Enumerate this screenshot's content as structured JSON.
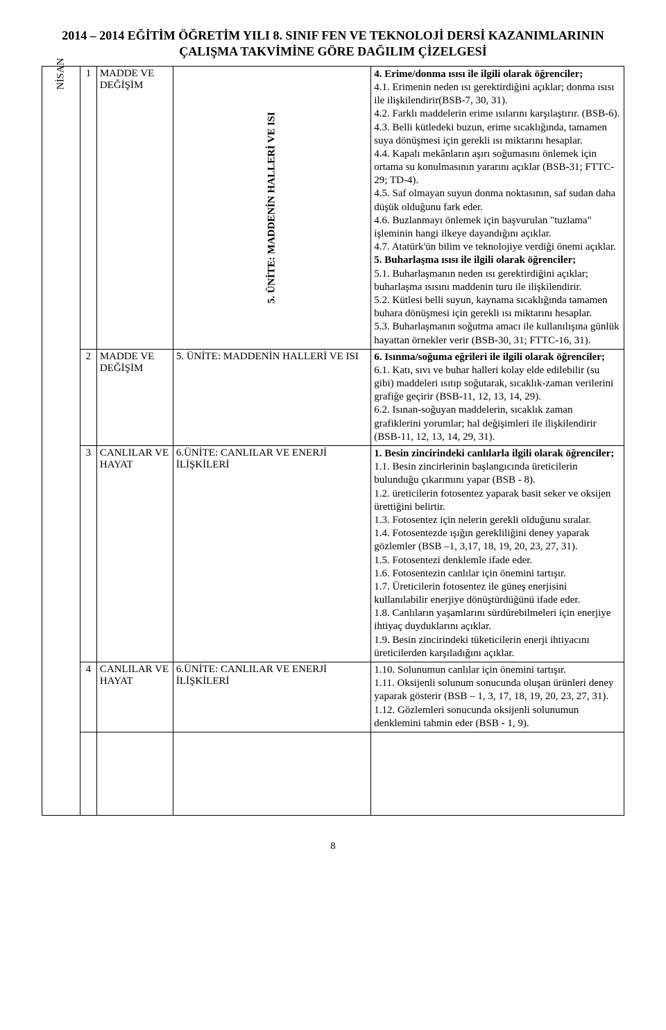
{
  "header": {
    "title_line1": "2014 – 2014 EĞİTİM ÖĞRETİM YILI 8. SINIF FEN VE TEKNOLOJİ DERSİ KAZANIMLARININ",
    "title_line2": "ÇALIŞMA TAKVİMİNE GÖRE DAĞILIM ÇİZELGESİ"
  },
  "page_number": "8",
  "month": "NİSAN",
  "rows": [
    {
      "week": "1",
      "subject": "MADDE VE DEĞİŞİM",
      "unit": "5. ÜNİTE: MADDENİN HALLERİ VE ISI",
      "unit_vertical": true,
      "content": [
        {
          "b": true,
          "t": "4. Erime/donma ısısı ile ilgili olarak öğrenciler;"
        },
        {
          "b": false,
          "t": "4.1. Erimenin neden ısı gerektirdiğini açıklar; donma ısısı ile ilişkilendirir(BSB-7, 30, 31)."
        },
        {
          "b": false,
          "t": "4.2. Farklı maddelerin erime ısılarını karşılaştırır. (BSB-6)."
        },
        {
          "b": false,
          "t": "4.3. Belli kütledeki buzun, erime sıcaklığında, tamamen suya dönüşmesi için gerekli ısı miktarını hesaplar."
        },
        {
          "b": false,
          "t": "4.4. Kapalı mekânların aşırı soğumasını önlemek için ortama su konulmasının yararını açıklar (BSB-31; FTTC-29; TD-4)."
        },
        {
          "b": false,
          "t": "4.5. Saf olmayan suyun donma noktasının, saf sudan daha düşük olduğunu fark eder."
        },
        {
          "b": false,
          "t": "4.6. Buzlanmayı önlemek için başvurulan \"tuzlama\" işleminin hangi ilkeye dayandığını açıklar."
        },
        {
          "b": false,
          "t": "4.7. Atatürk'ün bilim ve teknolojiye verdiği önemi açıklar."
        },
        {
          "b": true,
          "t": "5. Buharlaşma ısısı ile ilgili olarak öğrenciler;"
        },
        {
          "b": false,
          "t": "5.1. Buharlaşmanın neden ısı gerektirdiğini açıklar; buharlaşma ısısını maddenin turu ile ilişkilendirir."
        },
        {
          "b": false,
          "t": "5.2. Kütlesi belli suyun, kaynama sıcaklığında tamamen buhara dönüşmesi için gerekli ısı miktarını hesaplar."
        },
        {
          "b": false,
          "t": "5.3. Buharlaşmanın soğutma amacı ile kullanılışına günlük hayattan örnekler verir (BSB-30, 31; FTTC-16, 31)."
        }
      ]
    },
    {
      "week": "2",
      "subject": "MADDE VE DEĞİŞİM",
      "unit": "5. ÜNİTE: MADDENİN HALLERİ VE ISI",
      "unit_vertical": false,
      "content": [
        {
          "b": true,
          "t": "6. Isınma/soğuma eğrileri ile ilgili olarak öğrenciler;"
        },
        {
          "b": false,
          "t": "6.1. Katı, sıvı ve buhar halleri kolay elde edilebilir (su gibi) maddeleri ısıtıp soğutarak, sıcaklık-zaman verilerini grafiğe geçirir (BSB-11, 12, 13, 14, 29)."
        },
        {
          "b": false,
          "t": "6.2. Isınan-soğuyan maddelerin, sıcaklık zaman grafiklerini yorumlar; hal değişimleri ile ilişkilendirir (BSB-11, 12, 13, 14, 29, 31)."
        }
      ]
    },
    {
      "week": "3",
      "subject": "CANLILAR VE HAYAT",
      "unit": "6.ÜNİTE: CANLILAR VE ENERJİ İLİŞKİLERİ",
      "unit_vertical": false,
      "content": [
        {
          "b": true,
          "t": "1. Besin zincirindeki canlılarla ilgili olarak öğrenciler;"
        },
        {
          "b": false,
          "t": "1.1. Besin zincirlerinin başlangıcında üreticilerin bulunduğu çıkarımını yapar (BSB - 8)."
        },
        {
          "b": false,
          "t": "1.2. üreticilerin fotosentez yaparak basit seker ve oksijen ürettiğini belirtir."
        },
        {
          "b": false,
          "t": "1.3. Fotosentez için nelerin gerekli olduğunu sıralar."
        },
        {
          "b": false,
          "t": "1.4. Fotosentezde ışığın gerekliliğini deney yaparak gözlemler (BSB –1, 3,17, 18, 19, 20, 23, 27, 31)."
        },
        {
          "b": false,
          "t": "1.5. Fotosentezi denklemle ifade eder."
        },
        {
          "b": false,
          "t": "1.6. Fotosentezin canlılar için önemini tartışır."
        },
        {
          "b": false,
          "t": "1.7. Üreticilerin fotosentez ile güneş enerjisini kullanılabilir enerjiye dönüştürdüğünü ifade eder."
        },
        {
          "b": false,
          "t": "1.8. Canlıların yaşamlarını sürdürebilmeleri için enerjiye ihtiyaç duyduklarını açıklar."
        },
        {
          "b": false,
          "t": "1.9. Besin zincirindeki tüketicilerin enerji ihtiyacını üreticilerden karşıladığını açıklar."
        }
      ]
    },
    {
      "week": "4",
      "subject": "CANLILAR VE HAYAT",
      "unit": "6.ÜNİTE: CANLILAR VE ENERJİ İLİŞKİLERİ",
      "unit_vertical": false,
      "content": [
        {
          "b": false,
          "t": "1.10. Solunumun canlılar için önemini tartışır."
        },
        {
          "b": false,
          "t": "1.11. Oksijenli solunum sonucunda oluşan ürünleri deney yaparak gösterir (BSB – 1, 3, 17, 18, 19, 20, 23, 27, 31)."
        },
        {
          "b": false,
          "t": "1.12. Gözlemleri sonucunda oksijenli solunumun denklemini tahmin eder (BSB - 1, 9)."
        }
      ]
    }
  ]
}
